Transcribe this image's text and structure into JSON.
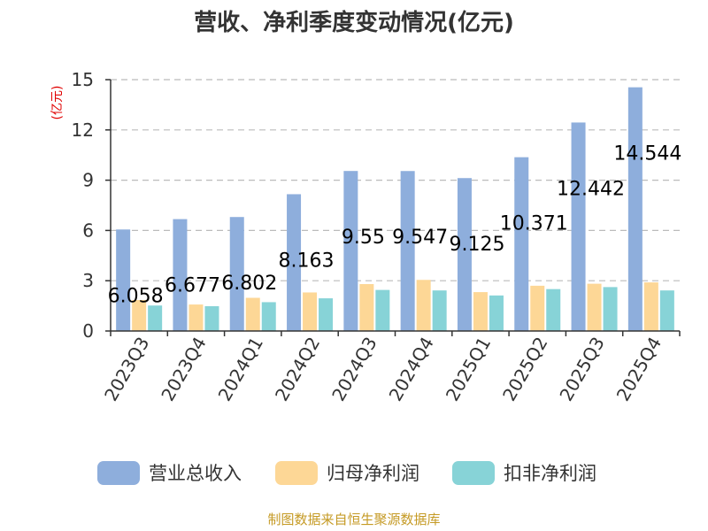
{
  "title": "营收、净利季度变动情况(亿元)",
  "unit_label": "(亿元)",
  "source": "制图数据来自恒生聚源数据库",
  "colors": {
    "revenue": "#8eaedc",
    "parent_profit": "#fdd796",
    "deducted_profit": "#87d3d7",
    "unit_text": "#e00000",
    "source_text": "#c59a24",
    "grid": "#bbbbbb",
    "axis": "#333333"
  },
  "chart_data": {
    "type": "bar",
    "categories": [
      "2023Q3",
      "2023Q4",
      "2024Q1",
      "2024Q2",
      "2024Q3",
      "2024Q4",
      "2025Q1",
      "2025Q2",
      "2025Q3",
      "2025Q4"
    ],
    "yticks": [
      "0",
      "3",
      "6",
      "9",
      "12",
      "15"
    ],
    "ylim": [
      0,
      15
    ],
    "grid": "horizontal dashed",
    "legend_position": "bottom",
    "series": [
      {
        "name": "营业总收入",
        "values": [
          6.058,
          6.677,
          6.802,
          8.163,
          9.55,
          9.547,
          9.125,
          10.371,
          12.442,
          14.544
        ],
        "labels": [
          "6.058",
          "6.677",
          "6.802",
          "8.163",
          "9.55",
          "9.547",
          "9.125",
          "10.371",
          "12.442",
          "14.544"
        ]
      },
      {
        "name": "归母净利润",
        "values": [
          1.85,
          1.58,
          1.98,
          2.3,
          2.8,
          3.05,
          2.32,
          2.7,
          2.82,
          2.9
        ]
      },
      {
        "name": "扣非净利润",
        "values": [
          1.52,
          1.48,
          1.72,
          1.95,
          2.45,
          2.42,
          2.12,
          2.5,
          2.62,
          2.42
        ]
      }
    ]
  }
}
